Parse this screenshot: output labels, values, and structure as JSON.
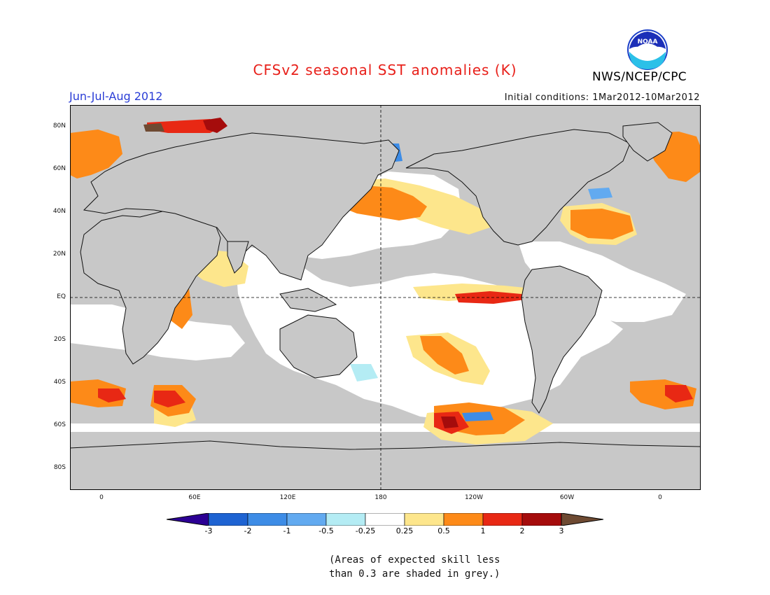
{
  "header": {
    "title": "CFSv2 seasonal SST anomalies (K)",
    "period": "Jun-Jul-Aug 2012",
    "initial_conditions": "Initial conditions: 1Mar2012-10Mar2012",
    "organization": "NWS/NCEP/CPC",
    "logo_text": "NOAA"
  },
  "map": {
    "lat_labels": [
      "80N",
      "60N",
      "40N",
      "20N",
      "EQ",
      "20S",
      "40S",
      "60S",
      "80S"
    ],
    "lon_labels": [
      "0",
      "60E",
      "120E",
      "180",
      "120W",
      "60W",
      "0"
    ],
    "colors": {
      "land": "#c8c8c8",
      "ocean": "#ffffff",
      "coast": "#111111"
    }
  },
  "colorbar": {
    "tick_labels": [
      "-3",
      "-2",
      "-1",
      "-0.5",
      "-0.25",
      "0.25",
      "0.5",
      "1",
      "2",
      "3"
    ],
    "colors": [
      "#2c0094",
      "#1e63d2",
      "#3d8ce6",
      "#62aaf0",
      "#b4ecf4",
      "#ffffff",
      "#fde68c",
      "#fd8a18",
      "#e82814",
      "#a50c0c",
      "#6e4a32"
    ]
  },
  "footnote": {
    "line1": "(Areas of expected skill less",
    "line2": "than 0.3 are shaded in grey.)"
  }
}
